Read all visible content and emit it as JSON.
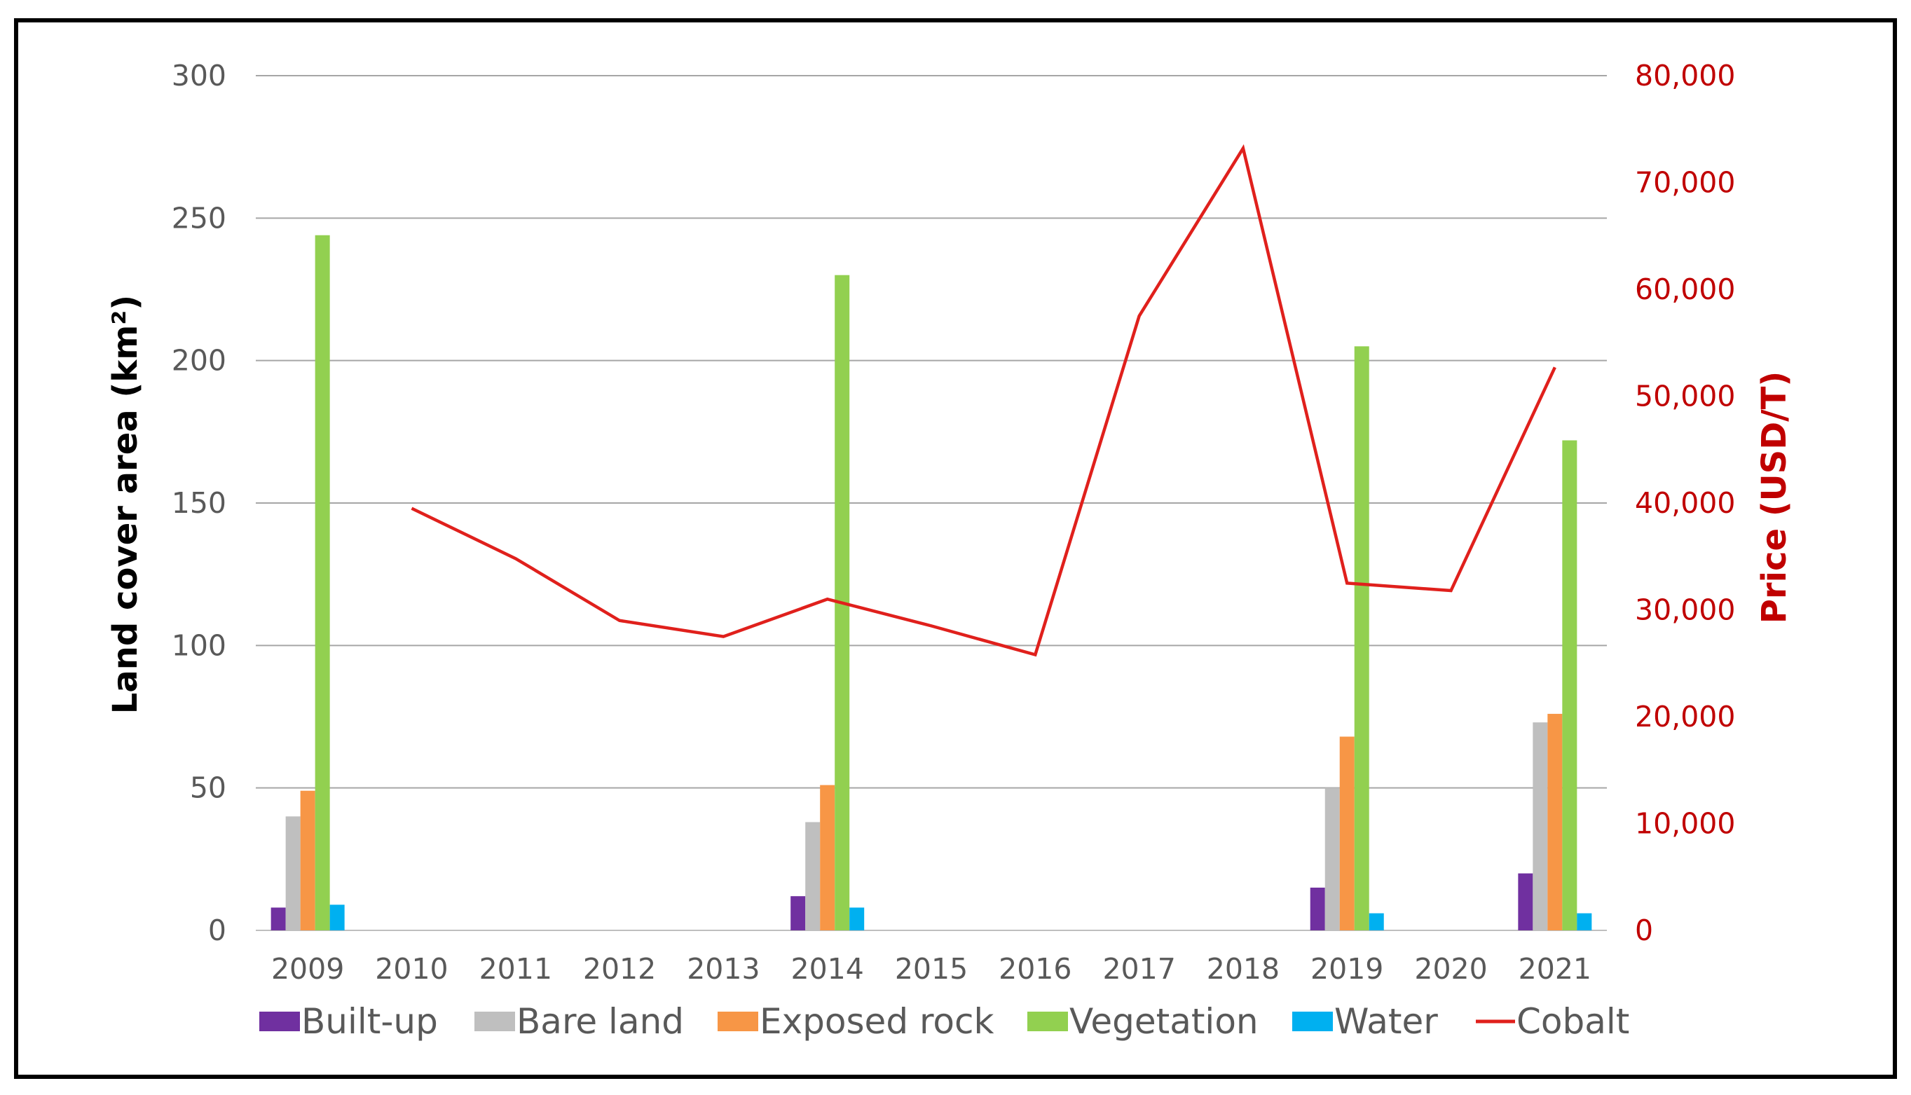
{
  "chart_data": {
    "type": "bar",
    "categories": [
      "2009",
      "2010",
      "2011",
      "2012",
      "2013",
      "2014",
      "2015",
      "2016",
      "2017",
      "2018",
      "2019",
      "2020",
      "2021"
    ],
    "y_axis": {
      "label": "Land cover area (km²)",
      "ylim": [
        0,
        300
      ],
      "ticks": [
        "0",
        "50",
        "100",
        "150",
        "200",
        "250",
        "300"
      ]
    },
    "y2_axis": {
      "label": "Price (USD/T)",
      "ylim": [
        0,
        80000
      ],
      "ticks": [
        "0",
        "10,000",
        "20,000",
        "30,000",
        "40,000",
        "50,000",
        "60,000",
        "70,000",
        "80,000"
      ]
    },
    "series": [
      {
        "name": "Built-up",
        "color": "#7030a0",
        "values": [
          8,
          null,
          null,
          null,
          null,
          12,
          null,
          null,
          null,
          null,
          15,
          null,
          20
        ]
      },
      {
        "name": "Bare land",
        "color": "#bfbfbf",
        "values": [
          40,
          null,
          null,
          null,
          null,
          38,
          null,
          null,
          null,
          null,
          50,
          null,
          73
        ]
      },
      {
        "name": "Exposed rock",
        "color": "#f79646",
        "values": [
          49,
          null,
          null,
          null,
          null,
          51,
          null,
          null,
          null,
          null,
          68,
          null,
          76
        ]
      },
      {
        "name": "Vegetation",
        "color": "#92d050",
        "values": [
          244,
          null,
          null,
          null,
          null,
          230,
          null,
          null,
          null,
          null,
          205,
          null,
          172
        ]
      },
      {
        "name": "Water",
        "color": "#00b0f0",
        "values": [
          9,
          null,
          null,
          null,
          null,
          8,
          null,
          null,
          null,
          null,
          6,
          null,
          6
        ]
      }
    ],
    "line_series": {
      "name": "Cobalt",
      "color": "#e0201c",
      "axis": "y2",
      "values": [
        null,
        39500,
        34800,
        29000,
        27500,
        31000,
        28500,
        25800,
        57500,
        73200,
        32500,
        31800,
        52700
      ]
    },
    "grid": true,
    "legend_position": "bottom"
  }
}
